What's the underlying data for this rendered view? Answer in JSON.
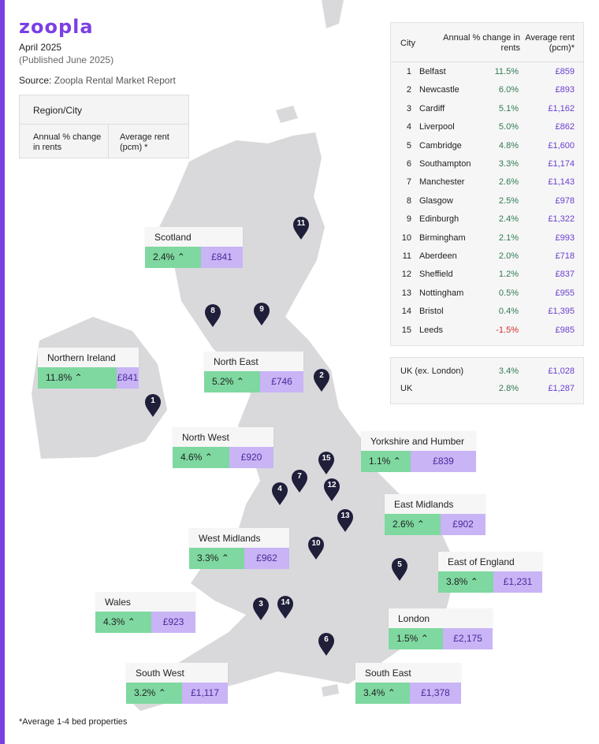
{
  "brand": "zoopla",
  "date": "April 2025",
  "published": "(Published June 2025)",
  "source_label": "Source:",
  "source": "Zoopla Rental Market Report",
  "legend": {
    "title": "Region/City",
    "change": "Annual % change in rents",
    "rent": "Average rent (pcm) *"
  },
  "footnote": "*Average 1-4 bed properties",
  "colors": {
    "accent": "#7b3fe4",
    "green": "#7ed8a0",
    "purple": "#c9b4f6",
    "pin": "#1f1f3a",
    "land": "#d9d9dc"
  },
  "regions": [
    {
      "name": "Scotland",
      "change": "2.4%",
      "rent": "£841"
    },
    {
      "name": "Northern Ireland",
      "change": "11.8%",
      "rent": "£841"
    },
    {
      "name": "North East",
      "change": "5.2%",
      "rent": "£746"
    },
    {
      "name": "North West",
      "change": "4.6%",
      "rent": "£920"
    },
    {
      "name": "Yorkshire and Humber",
      "change": "1.1%",
      "rent": "£839"
    },
    {
      "name": "East Midlands",
      "change": "2.6%",
      "rent": "£902"
    },
    {
      "name": "West Midlands",
      "change": "3.3%",
      "rent": "£962"
    },
    {
      "name": "East of England",
      "change": "3.8%",
      "rent": "£1,231"
    },
    {
      "name": "Wales",
      "change": "4.3%",
      "rent": "£923"
    },
    {
      "name": "London",
      "change": "1.5%",
      "rent": "£2,175"
    },
    {
      "name": "South West",
      "change": "3.2%",
      "rent": "£1,117"
    },
    {
      "name": "South East",
      "change": "3.4%",
      "rent": "£1,378"
    }
  ],
  "table": {
    "headers": {
      "city": "City",
      "change": "Annual % change in rents",
      "rent": "Average rent (pcm)*"
    },
    "rows": [
      {
        "rank": "1",
        "city": "Belfast",
        "change": "11.5%",
        "rent": "£859"
      },
      {
        "rank": "2",
        "city": "Newcastle",
        "change": "6.0%",
        "rent": "£893"
      },
      {
        "rank": "3",
        "city": "Cardiff",
        "change": "5.1%",
        "rent": "£1,162"
      },
      {
        "rank": "4",
        "city": "Liverpool",
        "change": "5.0%",
        "rent": "£862"
      },
      {
        "rank": "5",
        "city": "Cambridge",
        "change": "4.8%",
        "rent": "£1,600"
      },
      {
        "rank": "6",
        "city": "Southampton",
        "change": "3.3%",
        "rent": "£1,174"
      },
      {
        "rank": "7",
        "city": "Manchester",
        "change": "2.6%",
        "rent": "£1,143"
      },
      {
        "rank": "8",
        "city": "Glasgow",
        "change": "2.5%",
        "rent": "£978"
      },
      {
        "rank": "9",
        "city": "Edinburgh",
        "change": "2.4%",
        "rent": "£1,322"
      },
      {
        "rank": "10",
        "city": "Birmingham",
        "change": "2.1%",
        "rent": "£993"
      },
      {
        "rank": "11",
        "city": "Aberdeen",
        "change": "2.0%",
        "rent": "£718"
      },
      {
        "rank": "12",
        "city": "Sheffield",
        "change": "1.2%",
        "rent": "£837"
      },
      {
        "rank": "13",
        "city": "Nottingham",
        "change": "0.5%",
        "rent": "£955"
      },
      {
        "rank": "14",
        "city": "Bristol",
        "change": "0.4%",
        "rent": "£1,395"
      },
      {
        "rank": "15",
        "city": "Leeds",
        "change": "-1.5%",
        "rent": "£985"
      }
    ],
    "totals": [
      {
        "label": "UK (ex. London)",
        "change": "3.4%",
        "rent": "£1,028"
      },
      {
        "label": "UK",
        "change": "2.8%",
        "rent": "£1,287"
      }
    ]
  }
}
